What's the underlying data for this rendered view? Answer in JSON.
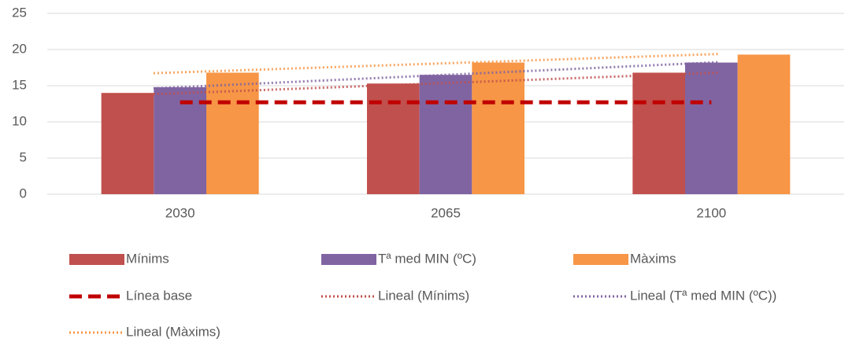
{
  "chart_data": {
    "type": "bar",
    "categories": [
      "2030",
      "2065",
      "2100"
    ],
    "series": [
      {
        "name": "Mínims",
        "color": "#c0504d",
        "values": [
          14.0,
          15.3,
          16.8
        ],
        "trendline": "Lineal (Mínims)"
      },
      {
        "name": "Tª med MIN (ºC)",
        "color": "#8064a2",
        "values": [
          14.8,
          16.5,
          18.2
        ],
        "trendline": "Lineal (Tª med MIN (ºC))"
      },
      {
        "name": "Màxims",
        "color": "#f79646",
        "values": [
          16.8,
          18.2,
          19.3
        ],
        "trendline": "Lineal (Màxims)"
      }
    ],
    "baseline": {
      "name": "Línea base",
      "color": "#c00000",
      "values": [
        12.7,
        12.7,
        12.7
      ]
    },
    "ylim": [
      0,
      25
    ],
    "yticks": [
      0,
      5,
      10,
      15,
      20,
      25
    ],
    "grid": true
  }
}
